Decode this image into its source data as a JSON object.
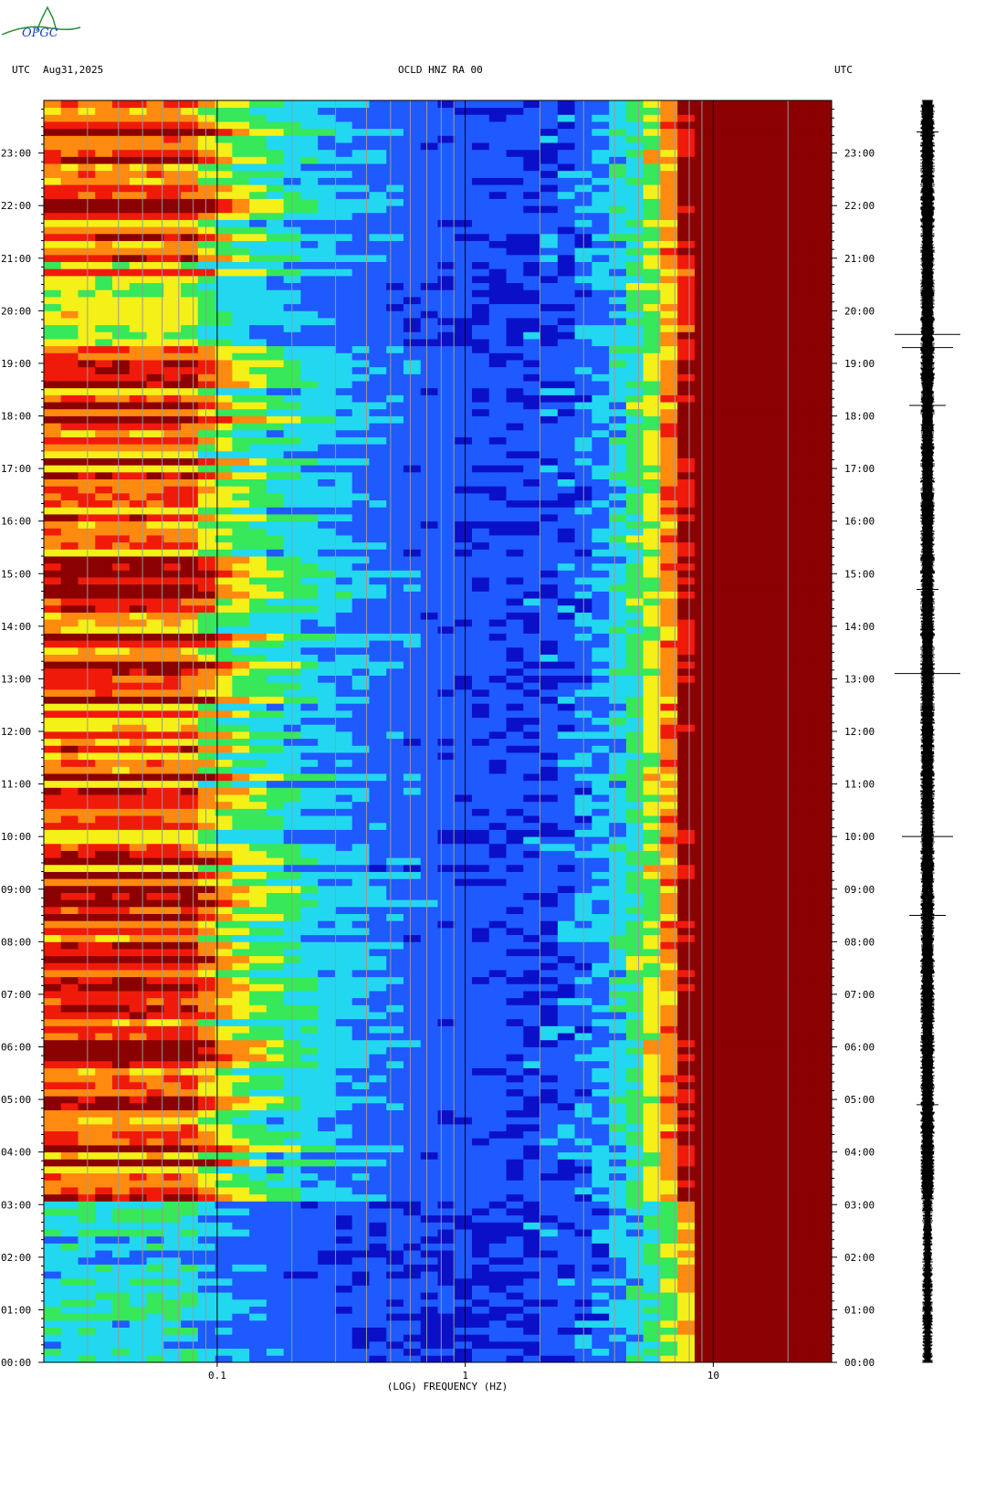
{
  "header": {
    "logo_text": "OPGC",
    "left_timezone": "UTC",
    "date": "Aug31,2025",
    "station": "OCLD HNZ RA 00",
    "right_timezone": "UTC"
  },
  "colors": {
    "dark_blue": "#0a10c8",
    "blue": "#1e5aff",
    "cyan": "#22d8f0",
    "green": "#36e85a",
    "yellow": "#f5f018",
    "orange": "#ff8a10",
    "red": "#f01a0a",
    "dark_red": "#8b0000",
    "logo_green": "#2a8f3a",
    "logo_blue": "#1a3fd0"
  },
  "chart_data": {
    "type": "heatmap",
    "title": "OCLD HNZ RA 00",
    "xlabel": "(LOG) FREQUENCY (HZ)",
    "x_scale": "log",
    "xlim": [
      0.02,
      30
    ],
    "x_ticks": [
      {
        "value": 0.1,
        "label": "0.1"
      },
      {
        "value": 1,
        "label": "1"
      },
      {
        "value": 10,
        "label": "10"
      }
    ],
    "y_ticks": [
      "00:00",
      "01:00",
      "02:00",
      "03:00",
      "04:00",
      "05:00",
      "06:00",
      "07:00",
      "08:00",
      "09:00",
      "10:00",
      "11:00",
      "12:00",
      "13:00",
      "14:00",
      "15:00",
      "16:00",
      "17:00",
      "18:00",
      "19:00",
      "20:00",
      "21:00",
      "22:00",
      "23:00"
    ],
    "ylim_hours": [
      0,
      24
    ],
    "color_scale": [
      "dark blue",
      "blue",
      "cyan",
      "green",
      "yellow",
      "orange",
      "red",
      "dark red"
    ],
    "trace": {
      "type": "seismogram",
      "notable_spike_hours": [
        4.9,
        8.5,
        10.0,
        13.1,
        14.7,
        18.2,
        19.3,
        19.55,
        23.4
      ]
    }
  }
}
